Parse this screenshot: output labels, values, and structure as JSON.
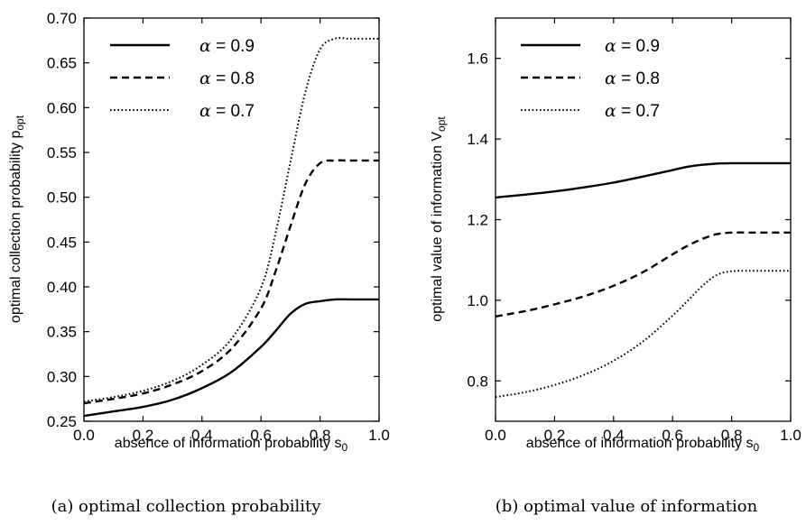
{
  "chart_data": [
    {
      "type": "line",
      "xlabel": "absence of information probability s",
      "xlabel_sub": "0",
      "ylabel": "optimal collection probability p",
      "ylabel_sub": "opt",
      "xlim": [
        0,
        1
      ],
      "ylim": [
        0.25,
        0.7
      ],
      "xticks": [
        "0.0",
        "0.2",
        "0.4",
        "0.6",
        "0.8",
        "1.0"
      ],
      "yticks": [
        "0.25",
        "0.30",
        "0.35",
        "0.40",
        "0.45",
        "0.50",
        "0.55",
        "0.60",
        "0.65",
        "0.70"
      ],
      "legend_position": "top-left",
      "caption": "(a) optimal collection probability",
      "x": [
        0.0,
        0.1,
        0.2,
        0.3,
        0.4,
        0.5,
        0.6,
        0.65,
        0.7,
        0.75,
        0.8,
        0.85,
        0.9,
        1.0
      ],
      "series": [
        {
          "name": "= 0.9",
          "style": "solid",
          "values": [
            0.256,
            0.261,
            0.266,
            0.274,
            0.287,
            0.305,
            0.333,
            0.351,
            0.37,
            0.381,
            0.384,
            0.386,
            0.386,
            0.386
          ]
        },
        {
          "name": "= 0.8",
          "style": "dashed",
          "values": [
            0.27,
            0.275,
            0.281,
            0.291,
            0.306,
            0.331,
            0.376,
            0.418,
            0.468,
            0.515,
            0.538,
            0.541,
            0.541,
            0.541
          ]
        },
        {
          "name": "= 0.7",
          "style": "dotted",
          "values": [
            0.272,
            0.277,
            0.284,
            0.295,
            0.313,
            0.342,
            0.399,
            0.461,
            0.54,
            0.617,
            0.665,
            0.677,
            0.677,
            0.677
          ]
        }
      ]
    },
    {
      "type": "line",
      "xlabel": "absence of information probability s",
      "xlabel_sub": "0",
      "ylabel": "optimal value of information V",
      "ylabel_sub": "opt",
      "xlim": [
        0,
        1
      ],
      "ylim": [
        0.7,
        1.7
      ],
      "xticks": [
        "0.0",
        "0.2",
        "0.4",
        "0.6",
        "0.8",
        "1.0"
      ],
      "yticks": [
        "0.8",
        "1.0",
        "1.2",
        "1.4",
        "1.6"
      ],
      "legend_position": "top-left",
      "caption": "(b) optimal value of information",
      "x": [
        0.0,
        0.1,
        0.2,
        0.3,
        0.4,
        0.5,
        0.6,
        0.65,
        0.7,
        0.75,
        0.8,
        0.85,
        0.9,
        1.0
      ],
      "series": [
        {
          "name": "= 0.9",
          "style": "solid",
          "values": [
            1.255,
            1.262,
            1.27,
            1.28,
            1.292,
            1.307,
            1.323,
            1.331,
            1.336,
            1.339,
            1.34,
            1.34,
            1.34,
            1.34
          ]
        },
        {
          "name": "= 0.8",
          "style": "dashed",
          "values": [
            0.96,
            0.973,
            0.99,
            1.01,
            1.036,
            1.07,
            1.114,
            1.135,
            1.152,
            1.164,
            1.168,
            1.168,
            1.168,
            1.168
          ]
        },
        {
          "name": "= 0.7",
          "style": "dotted",
          "values": [
            0.76,
            0.772,
            0.79,
            0.815,
            0.85,
            0.898,
            0.962,
            0.998,
            1.035,
            1.063,
            1.072,
            1.073,
            1.073,
            1.073
          ]
        }
      ]
    }
  ],
  "legend_symbol": "α"
}
